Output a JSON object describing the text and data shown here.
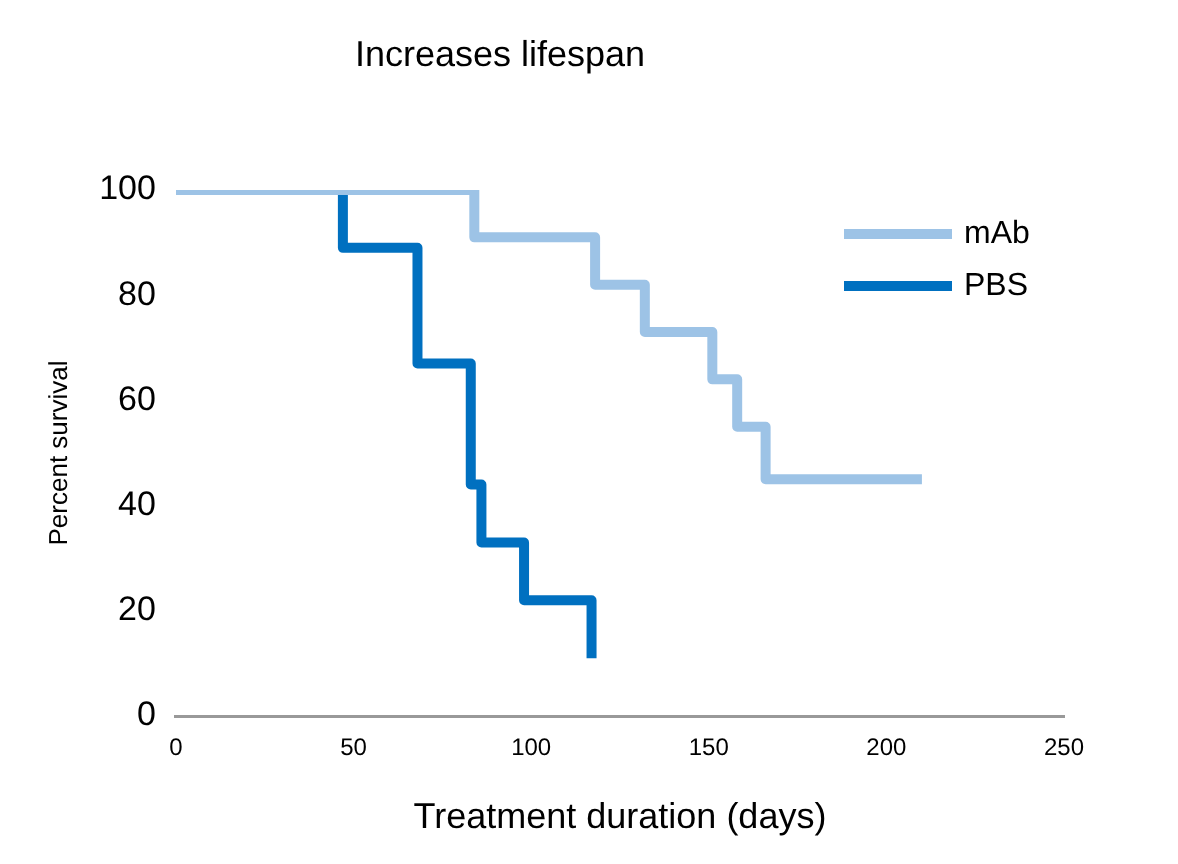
{
  "chart_data": {
    "type": "step",
    "title": "Increases lifespan",
    "xlabel": "Treatment duration (days)",
    "ylabel": "Percent survival",
    "xlim": [
      0,
      250
    ],
    "xticks": [
      0,
      50,
      100,
      150,
      200,
      250
    ],
    "ylim": [
      0,
      100
    ],
    "yticks": [
      0,
      20,
      40,
      60,
      80,
      100
    ],
    "grid": false,
    "legend": "top right",
    "marker": "none",
    "series": [
      {
        "name": "mAb",
        "color": "#9dc3e6",
        "x": [
          0,
          84,
          118,
          132,
          151,
          158,
          166,
          210
        ],
        "values": [
          100,
          91,
          82,
          73,
          64,
          55,
          45,
          45
        ]
      },
      {
        "name": "PBS",
        "color": "#0070c0",
        "x": [
          0,
          47,
          68,
          83,
          86,
          98,
          117
        ],
        "values": [
          100,
          89,
          67,
          44,
          33,
          22,
          11
        ]
      }
    ]
  }
}
